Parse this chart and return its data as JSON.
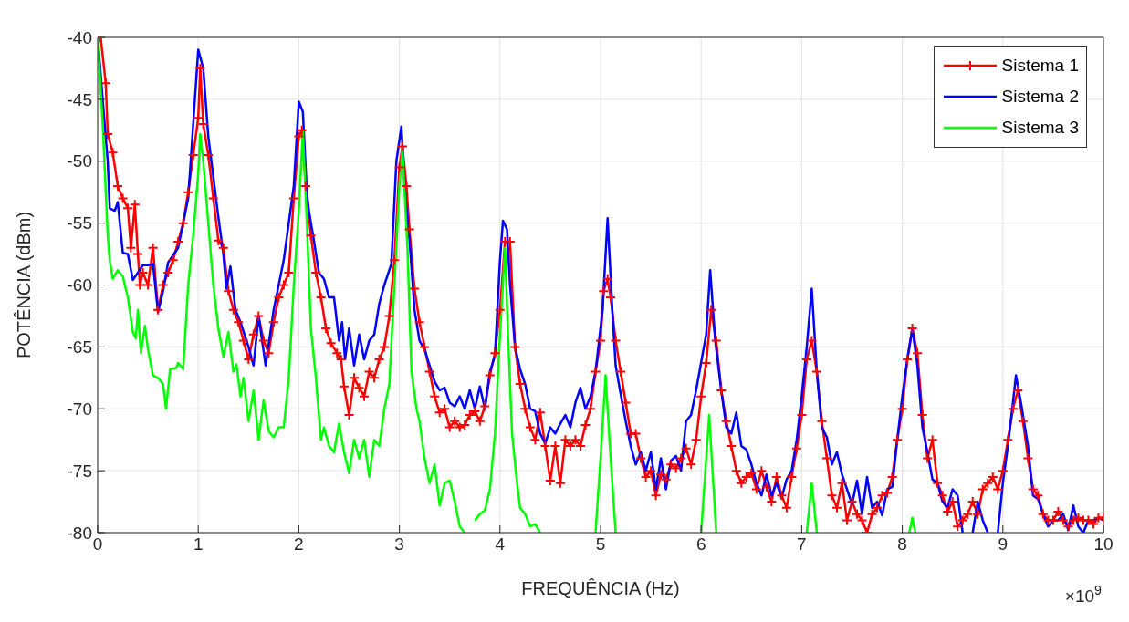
{
  "chart_data": {
    "type": "line",
    "xlabel": "FREQUÊNCIA (Hz)",
    "ylabel": "POTÊNCIA (dBm)",
    "xlim": [
      0,
      10
    ],
    "xticks": [
      0,
      1,
      2,
      3,
      4,
      5,
      6,
      7,
      8,
      9,
      10
    ],
    "ylim": [
      -80,
      -40
    ],
    "yticks": [
      -80,
      -75,
      -70,
      -65,
      -60,
      -55,
      -50,
      -45,
      -40
    ],
    "grid": true,
    "legend": "top right",
    "annotations": [
      "×10$^{9}$"
    ],
    "series": [
      {
        "name": "Sistema 1",
        "color": "#ff0000",
        "marker": "cross",
        "x": [
          0.03,
          0.08,
          0.1,
          0.15,
          0.2,
          0.25,
          0.3,
          0.33,
          0.37,
          0.4,
          0.42,
          0.45,
          0.5,
          0.55,
          0.6,
          0.65,
          0.7,
          0.75,
          0.8,
          0.85,
          0.9,
          0.95,
          1.0,
          1.02,
          1.05,
          1.1,
          1.15,
          1.2,
          1.25,
          1.3,
          1.35,
          1.4,
          1.45,
          1.5,
          1.55,
          1.6,
          1.65,
          1.7,
          1.75,
          1.8,
          1.85,
          1.9,
          1.95,
          2.0,
          2.03,
          2.07,
          2.12,
          2.17,
          2.22,
          2.27,
          2.32,
          2.38,
          2.42,
          2.45,
          2.5,
          2.55,
          2.6,
          2.65,
          2.7,
          2.75,
          2.8,
          2.85,
          2.9,
          2.95,
          3.0,
          3.03,
          3.07,
          3.1,
          3.15,
          3.2,
          3.25,
          3.3,
          3.35,
          3.4,
          3.45,
          3.5,
          3.55,
          3.6,
          3.65,
          3.7,
          3.75,
          3.8,
          3.85,
          3.9,
          3.95,
          4.0,
          4.05,
          4.1,
          4.15,
          4.2,
          4.25,
          4.3,
          4.35,
          4.4,
          4.45,
          4.5,
          4.55,
          4.6,
          4.65,
          4.7,
          4.75,
          4.8,
          4.85,
          4.9,
          4.95,
          5.0,
          5.03,
          5.07,
          5.1,
          5.15,
          5.2,
          5.25,
          5.3,
          5.35,
          5.4,
          5.45,
          5.5,
          5.55,
          5.6,
          5.65,
          5.7,
          5.75,
          5.8,
          5.85,
          5.9,
          5.95,
          6.0,
          6.05,
          6.1,
          6.15,
          6.2,
          6.25,
          6.3,
          6.35,
          6.4,
          6.45,
          6.5,
          6.55,
          6.6,
          6.65,
          6.7,
          6.75,
          6.8,
          6.85,
          6.9,
          6.95,
          7.0,
          7.05,
          7.1,
          7.15,
          7.2,
          7.25,
          7.3,
          7.35,
          7.4,
          7.45,
          7.5,
          7.55,
          7.6,
          7.65,
          7.7,
          7.75,
          7.8,
          7.85,
          7.9,
          7.95,
          8.0,
          8.05,
          8.1,
          8.15,
          8.2,
          8.25,
          8.3,
          8.35,
          8.4,
          8.45,
          8.5,
          8.55,
          8.6,
          8.65,
          8.7,
          8.75,
          8.8,
          8.85,
          8.9,
          8.95,
          9.0,
          9.05,
          9.1,
          9.15,
          9.2,
          9.25,
          9.3,
          9.35,
          9.4,
          9.45,
          9.5,
          9.55,
          9.6,
          9.65,
          9.7,
          9.75,
          9.8,
          9.85,
          9.9,
          9.95,
          10.0
        ],
        "values": [
          -40,
          -43.7,
          -47.8,
          -49.3,
          -52,
          -53,
          -53.8,
          -57,
          -53.5,
          -57.5,
          -60,
          -59,
          -60,
          -57,
          -62,
          -60,
          -59,
          -58,
          -56.5,
          -55,
          -52.5,
          -49.5,
          -46.5,
          -42.5,
          -47,
          -49.5,
          -53,
          -56.4,
          -57,
          -60.5,
          -62,
          -63,
          -64.5,
          -66,
          -64,
          -62.5,
          -64.5,
          -65.5,
          -63,
          -61,
          -60,
          -59,
          -53,
          -48,
          -47.5,
          -52,
          -56,
          -59,
          -61,
          -63.5,
          -64.7,
          -65.5,
          -66,
          -68.2,
          -70.5,
          -67.5,
          -68.3,
          -69,
          -67,
          -67.5,
          -66,
          -65,
          -62.5,
          -58,
          -50.5,
          -48.8,
          -52,
          -55.5,
          -60.3,
          -63,
          -65,
          -67,
          -69,
          -70.3,
          -70,
          -71.5,
          -71,
          -71.5,
          -71.3,
          -70.5,
          -70.2,
          -71,
          -69.8,
          -67.3,
          -65.5,
          -62,
          -56.5,
          -56.5,
          -65,
          -68,
          -70,
          -71.5,
          -72.5,
          -70.3,
          -73,
          -75.8,
          -73,
          -76,
          -72.5,
          -73,
          -72.5,
          -73,
          -71.3,
          -70,
          -67,
          -64.5,
          -60.5,
          -59.5,
          -61,
          -64.5,
          -67,
          -69.5,
          -72,
          -72,
          -74,
          -75.5,
          -75,
          -77,
          -75.3,
          -75.7,
          -74.5,
          -74.8,
          -74,
          -73.2,
          -74.5,
          -72.5,
          -69,
          -66.3,
          -62,
          -64.5,
          -68.5,
          -71,
          -73,
          -75,
          -76,
          -75.5,
          -75.2,
          -76.5,
          -75,
          -76.3,
          -77.5,
          -75.5,
          -77,
          -78,
          -75.5,
          -73.2,
          -70.5,
          -66,
          -64.5,
          -67,
          -71,
          -74,
          -77,
          -78,
          -76,
          -79,
          -77.5,
          -78.5,
          -79,
          -80,
          -78.5,
          -78,
          -77,
          -76.8,
          -75.5,
          -72.5,
          -70,
          -66,
          -63.5,
          -65.5,
          -70.5,
          -74,
          -72.5,
          -76,
          -77,
          -78.3,
          -77.5,
          -79.5,
          -79,
          -78.5,
          -77.5,
          -78.5,
          -76.5,
          -76,
          -75.5,
          -76.5,
          -75,
          -72.5,
          -70,
          -68.5,
          -71,
          -74,
          -76.5,
          -77,
          -78.5,
          -79,
          -79,
          -78.3,
          -79,
          -79.5,
          -79,
          -78.8,
          -79,
          -79,
          -79.3,
          -78.8,
          -78.8
        ]
      },
      {
        "name": "Sistema 2",
        "color": "#0000ff",
        "x": [
          0.0,
          0.05,
          0.1,
          0.12,
          0.17,
          0.2,
          0.25,
          0.3,
          0.35,
          0.4,
          0.45,
          0.5,
          0.55,
          0.6,
          0.65,
          0.7,
          0.8,
          0.9,
          0.95,
          1.0,
          1.05,
          1.1,
          1.2,
          1.25,
          1.28,
          1.32,
          1.37,
          1.42,
          1.5,
          1.55,
          1.6,
          1.67,
          1.75,
          1.85,
          1.95,
          2.0,
          2.04,
          2.08,
          2.1,
          2.15,
          2.2,
          2.25,
          2.3,
          2.35,
          2.4,
          2.43,
          2.46,
          2.5,
          2.55,
          2.6,
          2.65,
          2.7,
          2.75,
          2.8,
          2.85,
          2.92,
          2.97,
          3.02,
          3.06,
          3.1,
          3.15,
          3.2,
          3.25,
          3.3,
          3.35,
          3.4,
          3.45,
          3.5,
          3.55,
          3.6,
          3.65,
          3.7,
          3.75,
          3.8,
          3.85,
          3.9,
          3.95,
          4.0,
          4.03,
          4.07,
          4.1,
          4.15,
          4.2,
          4.25,
          4.3,
          4.35,
          4.4,
          4.45,
          4.5,
          4.55,
          4.6,
          4.65,
          4.7,
          4.75,
          4.8,
          4.85,
          4.9,
          4.95,
          5.02,
          5.07,
          5.12,
          5.15,
          5.2,
          5.25,
          5.3,
          5.35,
          5.4,
          5.45,
          5.5,
          5.55,
          5.6,
          5.65,
          5.7,
          5.75,
          5.8,
          5.85,
          5.9,
          5.95,
          6.05,
          6.09,
          6.14,
          6.2,
          6.25,
          6.3,
          6.35,
          6.4,
          6.45,
          6.5,
          6.55,
          6.6,
          6.65,
          6.7,
          6.75,
          6.8,
          6.85,
          6.9,
          6.95,
          7.0,
          7.05,
          7.1,
          7.15,
          7.2,
          7.25,
          7.3,
          7.35,
          7.4,
          7.45,
          7.5,
          7.55,
          7.6,
          7.65,
          7.7,
          7.75,
          7.8,
          7.85,
          7.9,
          7.95,
          8.0,
          8.05,
          8.1,
          8.15,
          8.2,
          8.25,
          8.3,
          8.35,
          8.4,
          8.45,
          8.5,
          8.55,
          8.6,
          8.65,
          8.7,
          8.75,
          8.8,
          8.85,
          8.9,
          8.95,
          9.0,
          9.05,
          9.1,
          9.13,
          9.18,
          9.25,
          9.3,
          9.35,
          9.4,
          9.45,
          9.5,
          9.55,
          9.6,
          9.65,
          9.7,
          9.75,
          9.8,
          9.85,
          9.9,
          9.95,
          10.0
        ],
        "values": [
          -40,
          -45,
          -50,
          -53.8,
          -54,
          -53.3,
          -57.4,
          -57.5,
          -59.6,
          -59,
          -58.4,
          -58.4,
          -58.3,
          -62.2,
          -60.5,
          -58.2,
          -57,
          -53,
          -47,
          -41,
          -42.5,
          -48,
          -54.5,
          -57.5,
          -60.3,
          -58.5,
          -62,
          -63,
          -65,
          -66.5,
          -62.5,
          -66.5,
          -62,
          -58,
          -52,
          -45.2,
          -46,
          -52.5,
          -54,
          -56.4,
          -59,
          -59.5,
          -61,
          -61,
          -64.5,
          -63,
          -66,
          -63.5,
          -66.5,
          -64,
          -66,
          -64.5,
          -64,
          -61.5,
          -60,
          -58.3,
          -50,
          -47.2,
          -53,
          -56.3,
          -62,
          -64.5,
          -65.2,
          -66.5,
          -67.8,
          -68.5,
          -68.3,
          -69.5,
          -69.8,
          -69,
          -70,
          -68.5,
          -70,
          -68.2,
          -70,
          -67,
          -65.7,
          -58,
          -54.8,
          -55.5,
          -60,
          -65,
          -66.8,
          -68,
          -70,
          -70.2,
          -72,
          -72.8,
          -71.5,
          -72,
          -71.2,
          -70.5,
          -71.5,
          -69.5,
          -68.3,
          -70,
          -69,
          -67,
          -62,
          -54.6,
          -62.5,
          -66.5,
          -68.8,
          -71,
          -73,
          -74.5,
          -73.5,
          -75,
          -73.5,
          -76.5,
          -74,
          -76.5,
          -74.2,
          -73.8,
          -75,
          -71,
          -70.5,
          -68.5,
          -64,
          -58.8,
          -64.5,
          -68.5,
          -71.5,
          -72,
          -70.3,
          -73,
          -73.3,
          -74.5,
          -76,
          -77,
          -75.3,
          -77,
          -76,
          -77.2,
          -75.7,
          -75,
          -72.5,
          -69,
          -65,
          -60.3,
          -67,
          -71.5,
          -72.3,
          -74.5,
          -73.5,
          -75.3,
          -76.5,
          -77.7,
          -75.8,
          -78.5,
          -75.5,
          -78,
          -77.5,
          -78.6,
          -76.5,
          -76.3,
          -72.5,
          -69,
          -66,
          -63.5,
          -66.5,
          -71.5,
          -73.5,
          -75.7,
          -76,
          -77.5,
          -78,
          -76.5,
          -77,
          -80,
          null,
          -80,
          -77.5,
          -79,
          -80,
          null,
          -80,
          -76,
          -73,
          -69.5,
          -67.3,
          -69.5,
          -73,
          -77,
          -77.3,
          -78.5,
          -79.5,
          -79,
          -79,
          -78.5,
          -79.8,
          -77.8,
          -79.5,
          -80,
          -79,
          -79,
          -78.8,
          -79
        ]
      },
      {
        "name": "Sistema 3",
        "color": "#00ff00",
        "x": [
          0.0,
          0.05,
          0.1,
          0.12,
          0.15,
          0.2,
          0.25,
          0.3,
          0.35,
          0.38,
          0.4,
          0.43,
          0.47,
          0.5,
          0.55,
          0.6,
          0.65,
          0.68,
          0.72,
          0.78,
          0.8,
          0.85,
          0.9,
          0.95,
          1.0,
          1.02,
          1.05,
          1.1,
          1.15,
          1.2,
          1.25,
          1.3,
          1.35,
          1.38,
          1.42,
          1.45,
          1.5,
          1.55,
          1.6,
          1.65,
          1.7,
          1.75,
          1.8,
          1.85,
          1.9,
          1.95,
          2.0,
          2.04,
          2.08,
          2.12,
          2.17,
          2.22,
          2.25,
          2.3,
          2.35,
          2.4,
          2.45,
          2.5,
          2.55,
          2.6,
          2.65,
          2.7,
          2.75,
          2.8,
          2.85,
          2.9,
          2.95,
          3.0,
          3.03,
          3.08,
          3.12,
          3.17,
          3.2,
          3.25,
          3.3,
          3.35,
          3.4,
          3.45,
          3.5,
          3.55,
          3.6,
          3.65,
          3.7,
          3.75,
          3.8,
          3.85,
          3.9,
          3.95,
          4.0,
          4.05,
          4.08,
          4.12,
          4.17,
          4.2,
          4.25,
          4.3,
          4.35,
          4.4,
          4.6,
          4.95,
          5.0,
          5.05,
          5.1,
          5.15,
          5.5,
          6.0,
          6.08,
          6.15,
          6.6,
          7.05,
          7.1,
          7.15,
          7.6,
          8.07,
          8.1,
          8.13
        ],
        "values": [
          -40,
          -47,
          -56,
          -58,
          -59.5,
          -58.8,
          -59.3,
          -61,
          -63.8,
          -64.3,
          -62,
          -65.5,
          -63.3,
          -65.2,
          -67.3,
          -67.5,
          -68,
          -70,
          -66.8,
          -66.7,
          -66.3,
          -66.8,
          -60,
          -56,
          -51,
          -47.8,
          -50,
          -55,
          -60,
          -63.5,
          -65.8,
          -63.8,
          -67,
          -66.4,
          -69,
          -67.5,
          -71,
          -68.5,
          -72.5,
          -69.3,
          -71.8,
          -72.3,
          -71.5,
          -71.5,
          -67.5,
          -60,
          -54,
          -47.5,
          -55,
          -63.5,
          -67.5,
          -72.5,
          -71.5,
          -73,
          -73.5,
          -71.2,
          -73.5,
          -75.2,
          -72.5,
          -74,
          -72.5,
          -75.5,
          -72.5,
          -73,
          -70,
          -68,
          -60,
          -52,
          -49,
          -57,
          -67,
          -70,
          -71,
          -74,
          -76,
          -74.5,
          -77.8,
          -76,
          -75.8,
          -77.5,
          -79.5,
          -80,
          null,
          -79,
          -78.5,
          -78.2,
          -76.5,
          -72,
          -64,
          -57,
          -64,
          -72,
          -76,
          -78,
          -78.5,
          -79.5,
          -79.3,
          -80,
          null,
          -80,
          -74,
          -67.3,
          -74,
          -80,
          null,
          -80,
          -70.5,
          -80,
          null,
          -80,
          -76,
          -80,
          null,
          -80,
          -78.8,
          -80
        ]
      }
    ]
  }
}
